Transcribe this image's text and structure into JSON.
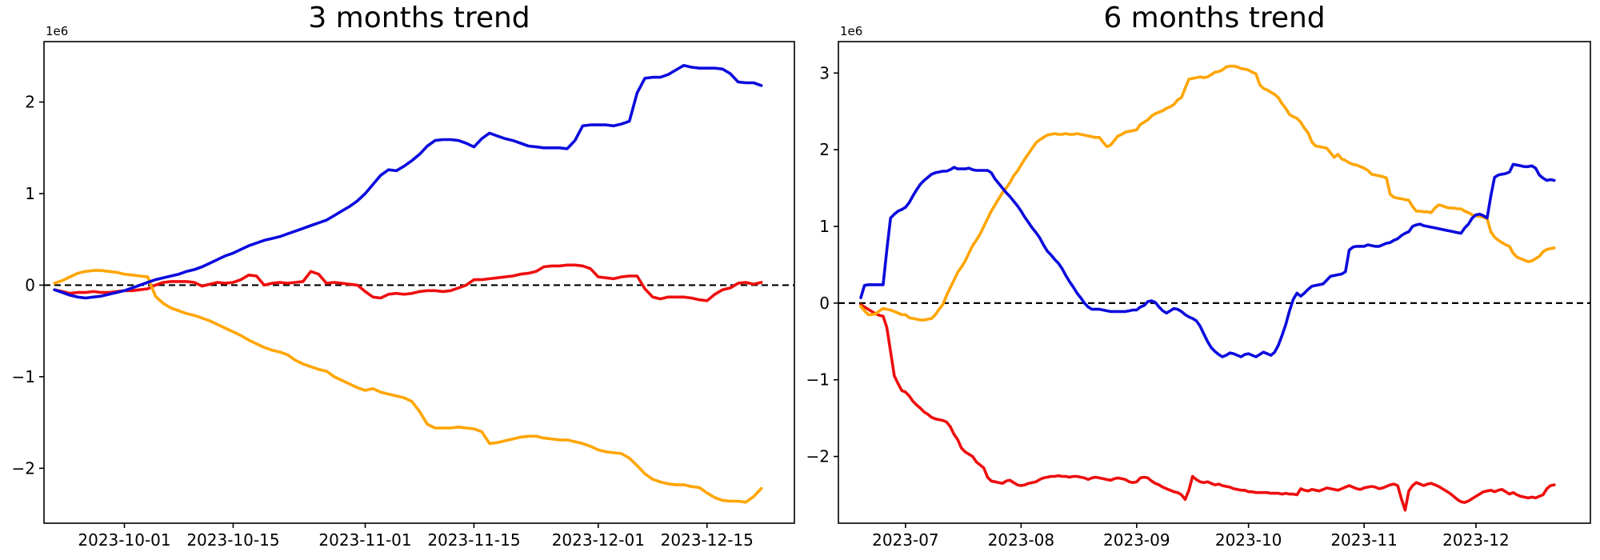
{
  "page": {
    "background": "#ffffff"
  },
  "chart_data": [
    {
      "type": "line",
      "title": "3 months trend",
      "axis_offset_label": "1e6",
      "start_date": "2023-09-22",
      "end_date": "2023-12-22",
      "grid": false,
      "legend_position": "none",
      "xlim_days": [
        -1.35,
        95.25
      ],
      "ylim": [
        -2.6,
        2.66
      ],
      "y_unit": 1000000,
      "zero_line": {
        "value": 0,
        "style": "dashed",
        "color": "#000000"
      },
      "y_ticks": [
        {
          "value": -2,
          "label": "−2"
        },
        {
          "value": -1,
          "label": "−1"
        },
        {
          "value": 0,
          "label": "0"
        },
        {
          "value": 1,
          "label": "1"
        },
        {
          "value": 2,
          "label": "2"
        }
      ],
      "x_ticks": [
        {
          "day": 9,
          "label": "2023-10-01"
        },
        {
          "day": 23,
          "label": "2023-10-15"
        },
        {
          "day": 40,
          "label": "2023-11-01"
        },
        {
          "day": 54,
          "label": "2023-11-15"
        },
        {
          "day": 70,
          "label": "2023-12-01"
        },
        {
          "day": 84,
          "label": "2023-12-15"
        }
      ],
      "series": [
        {
          "name": "series-red",
          "color": "#ee0e0e",
          "line_width": 3.6,
          "values": [
            -0.05,
            -0.07,
            -0.09,
            -0.08,
            -0.08,
            -0.07,
            -0.08,
            -0.08,
            -0.07,
            -0.06,
            -0.06,
            -0.05,
            -0.04,
            0.0,
            0.03,
            0.04,
            0.04,
            0.04,
            0.03,
            -0.01,
            0.01,
            0.03,
            0.02,
            0.03,
            0.06,
            0.11,
            0.1,
            0.0,
            0.02,
            0.03,
            0.02,
            0.03,
            0.04,
            0.15,
            0.12,
            0.02,
            0.03,
            0.02,
            0.01,
            0.0,
            -0.07,
            -0.13,
            -0.14,
            -0.1,
            -0.09,
            -0.1,
            -0.09,
            -0.07,
            -0.06,
            -0.06,
            -0.07,
            -0.06,
            -0.03,
            0.0,
            0.06,
            0.06,
            0.07,
            0.08,
            0.09,
            0.1,
            0.12,
            0.13,
            0.15,
            0.2,
            0.21,
            0.21,
            0.22,
            0.22,
            0.21,
            0.18,
            0.09,
            0.08,
            0.07,
            0.09,
            0.1,
            0.1,
            -0.04,
            -0.13,
            -0.15,
            -0.13,
            -0.13,
            -0.13,
            -0.14,
            -0.16,
            -0.17,
            -0.1,
            -0.05,
            -0.03,
            0.02,
            0.03,
            0.01,
            0.03
          ]
        },
        {
          "name": "series-orange",
          "color": "#ffa500",
          "line_width": 3.6,
          "values": [
            0.02,
            0.05,
            0.09,
            0.13,
            0.15,
            0.16,
            0.16,
            0.15,
            0.14,
            0.12,
            0.11,
            0.1,
            0.09,
            -0.12,
            -0.2,
            -0.25,
            -0.28,
            -0.31,
            -0.33,
            -0.36,
            -0.39,
            -0.43,
            -0.47,
            -0.51,
            -0.55,
            -0.6,
            -0.64,
            -0.68,
            -0.71,
            -0.73,
            -0.76,
            -0.82,
            -0.86,
            -0.89,
            -0.92,
            -0.94,
            -1.0,
            -1.04,
            -1.08,
            -1.12,
            -1.15,
            -1.13,
            -1.17,
            -1.19,
            -1.21,
            -1.23,
            -1.27,
            -1.38,
            -1.52,
            -1.56,
            -1.56,
            -1.56,
            -1.55,
            -1.56,
            -1.57,
            -1.6,
            -1.73,
            -1.72,
            -1.7,
            -1.68,
            -1.66,
            -1.65,
            -1.65,
            -1.67,
            -1.68,
            -1.69,
            -1.69,
            -1.71,
            -1.73,
            -1.76,
            -1.8,
            -1.82,
            -1.83,
            -1.84,
            -1.89,
            -1.97,
            -2.06,
            -2.12,
            -2.15,
            -2.17,
            -2.18,
            -2.18,
            -2.2,
            -2.21,
            -2.27,
            -2.32,
            -2.35,
            -2.36,
            -2.36,
            -2.37,
            -2.31,
            -2.22
          ]
        },
        {
          "name": "series-blue",
          "color": "#0b0bdd",
          "line_width": 3.6,
          "values": [
            -0.05,
            -0.08,
            -0.11,
            -0.13,
            -0.14,
            -0.13,
            -0.12,
            -0.1,
            -0.08,
            -0.06,
            -0.03,
            0.0,
            0.03,
            0.06,
            0.08,
            0.1,
            0.12,
            0.15,
            0.17,
            0.2,
            0.24,
            0.28,
            0.32,
            0.35,
            0.39,
            0.43,
            0.46,
            0.49,
            0.51,
            0.53,
            0.56,
            0.59,
            0.62,
            0.65,
            0.68,
            0.71,
            0.76,
            0.81,
            0.86,
            0.92,
            1.0,
            1.1,
            1.2,
            1.26,
            1.25,
            1.3,
            1.36,
            1.43,
            1.52,
            1.58,
            1.59,
            1.59,
            1.58,
            1.55,
            1.51,
            1.6,
            1.66,
            1.63,
            1.6,
            1.58,
            1.55,
            1.52,
            1.51,
            1.5,
            1.5,
            1.5,
            1.49,
            1.58,
            1.74,
            1.75,
            1.75,
            1.75,
            1.74,
            1.76,
            1.79,
            2.1,
            2.26,
            2.27,
            2.27,
            2.3,
            2.35,
            2.4,
            2.38,
            2.37,
            2.37,
            2.37,
            2.36,
            2.31,
            2.22,
            2.21,
            2.21,
            2.18
          ]
        }
      ]
    },
    {
      "type": "line",
      "title": "6 months trend",
      "axis_offset_label": "1e6",
      "start_date": "2023-06-19",
      "end_date": "2023-12-22",
      "grid": false,
      "legend_position": "none",
      "xlim_days": [
        -6.0,
        195.7
      ],
      "ylim": [
        -2.87,
        3.41
      ],
      "y_unit": 1000000,
      "zero_line": {
        "value": 0,
        "style": "dashed",
        "color": "#000000"
      },
      "y_ticks": [
        {
          "value": -2,
          "label": "−2"
        },
        {
          "value": -1,
          "label": "−1"
        },
        {
          "value": 0,
          "label": "0"
        },
        {
          "value": 1,
          "label": "1"
        },
        {
          "value": 2,
          "label": "2"
        },
        {
          "value": 3,
          "label": "3"
        }
      ],
      "x_ticks": [
        {
          "day": 12,
          "label": "2023-07"
        },
        {
          "day": 43,
          "label": "2023-08"
        },
        {
          "day": 74,
          "label": "2023-09"
        },
        {
          "day": 104,
          "label": "2023-10"
        },
        {
          "day": 135,
          "label": "2023-11"
        },
        {
          "day": 165,
          "label": "2023-12"
        }
      ],
      "series": [
        {
          "name": "series-red",
          "color": "#ee0e0e",
          "line_width": 3.6,
          "values": [
            -0.02,
            -0.05,
            -0.08,
            -0.11,
            -0.14,
            -0.16,
            -0.17,
            -0.32,
            -0.63,
            -0.95,
            -1.05,
            -1.14,
            -1.16,
            -1.21,
            -1.28,
            -1.33,
            -1.37,
            -1.42,
            -1.45,
            -1.49,
            -1.51,
            -1.52,
            -1.53,
            -1.55,
            -1.61,
            -1.71,
            -1.78,
            -1.89,
            -1.94,
            -1.97,
            -2.0,
            -2.07,
            -2.11,
            -2.15,
            -2.27,
            -2.32,
            -2.33,
            -2.34,
            -2.35,
            -2.32,
            -2.31,
            -2.34,
            -2.37,
            -2.38,
            -2.37,
            -2.35,
            -2.34,
            -2.33,
            -2.3,
            -2.28,
            -2.27,
            -2.26,
            -2.26,
            -2.25,
            -2.26,
            -2.26,
            -2.27,
            -2.26,
            -2.26,
            -2.27,
            -2.28,
            -2.3,
            -2.28,
            -2.27,
            -2.28,
            -2.29,
            -2.3,
            -2.31,
            -2.29,
            -2.28,
            -2.29,
            -2.3,
            -2.33,
            -2.34,
            -2.33,
            -2.28,
            -2.27,
            -2.28,
            -2.32,
            -2.35,
            -2.37,
            -2.4,
            -2.42,
            -2.44,
            -2.46,
            -2.47,
            -2.5,
            -2.56,
            -2.44,
            -2.26,
            -2.3,
            -2.33,
            -2.34,
            -2.33,
            -2.35,
            -2.37,
            -2.36,
            -2.38,
            -2.39,
            -2.4,
            -2.42,
            -2.43,
            -2.44,
            -2.44,
            -2.46,
            -2.46,
            -2.47,
            -2.47,
            -2.47,
            -2.47,
            -2.48,
            -2.48,
            -2.48,
            -2.49,
            -2.48,
            -2.49,
            -2.49,
            -2.5,
            -2.42,
            -2.44,
            -2.45,
            -2.43,
            -2.44,
            -2.45,
            -2.43,
            -2.41,
            -2.42,
            -2.43,
            -2.44,
            -2.42,
            -2.4,
            -2.38,
            -2.4,
            -2.42,
            -2.43,
            -2.41,
            -2.4,
            -2.39,
            -2.4,
            -2.42,
            -2.41,
            -2.39,
            -2.37,
            -2.36,
            -2.38,
            -2.55,
            -2.7,
            -2.45,
            -2.38,
            -2.34,
            -2.36,
            -2.38,
            -2.36,
            -2.35,
            -2.37,
            -2.39,
            -2.42,
            -2.45,
            -2.48,
            -2.52,
            -2.56,
            -2.59,
            -2.6,
            -2.58,
            -2.55,
            -2.52,
            -2.49,
            -2.46,
            -2.45,
            -2.44,
            -2.46,
            -2.44,
            -2.43,
            -2.46,
            -2.49,
            -2.47,
            -2.5,
            -2.52,
            -2.53,
            -2.54,
            -2.53,
            -2.54,
            -2.52,
            -2.5,
            -2.42,
            -2.38,
            -2.37
          ]
        },
        {
          "name": "series-orange",
          "color": "#ffa500",
          "line_width": 3.6,
          "values": [
            -0.04,
            -0.1,
            -0.15,
            -0.15,
            -0.14,
            -0.1,
            -0.07,
            -0.08,
            -0.09,
            -0.11,
            -0.13,
            -0.15,
            -0.15,
            -0.19,
            -0.2,
            -0.21,
            -0.22,
            -0.22,
            -0.21,
            -0.2,
            -0.15,
            -0.08,
            -0.02,
            0.1,
            0.2,
            0.3,
            0.4,
            0.47,
            0.55,
            0.65,
            0.75,
            0.82,
            0.9,
            1.0,
            1.1,
            1.2,
            1.28,
            1.36,
            1.44,
            1.5,
            1.57,
            1.66,
            1.72,
            1.8,
            1.88,
            1.95,
            2.02,
            2.09,
            2.13,
            2.16,
            2.19,
            2.2,
            2.21,
            2.2,
            2.2,
            2.21,
            2.2,
            2.2,
            2.21,
            2.2,
            2.19,
            2.18,
            2.17,
            2.16,
            2.16,
            2.1,
            2.04,
            2.06,
            2.12,
            2.18,
            2.2,
            2.23,
            2.24,
            2.25,
            2.26,
            2.33,
            2.36,
            2.39,
            2.44,
            2.47,
            2.49,
            2.51,
            2.54,
            2.56,
            2.59,
            2.65,
            2.68,
            2.8,
            2.92,
            2.93,
            2.94,
            2.95,
            2.94,
            2.95,
            2.98,
            3.01,
            3.02,
            3.04,
            3.08,
            3.09,
            3.09,
            3.08,
            3.06,
            3.05,
            3.04,
            3.01,
            2.99,
            2.85,
            2.8,
            2.78,
            2.75,
            2.72,
            2.68,
            2.6,
            2.54,
            2.46,
            2.43,
            2.41,
            2.36,
            2.28,
            2.22,
            2.1,
            2.05,
            2.04,
            2.03,
            2.02,
            1.96,
            1.9,
            1.94,
            1.88,
            1.86,
            1.83,
            1.81,
            1.8,
            1.78,
            1.76,
            1.73,
            1.68,
            1.67,
            1.66,
            1.65,
            1.63,
            1.42,
            1.38,
            1.37,
            1.36,
            1.35,
            1.34,
            1.26,
            1.2,
            1.2,
            1.19,
            1.19,
            1.18,
            1.24,
            1.28,
            1.27,
            1.25,
            1.24,
            1.24,
            1.23,
            1.23,
            1.2,
            1.18,
            1.15,
            1.14,
            1.13,
            1.12,
            1.1,
            0.93,
            0.86,
            0.82,
            0.79,
            0.76,
            0.74,
            0.65,
            0.6,
            0.58,
            0.56,
            0.54,
            0.55,
            0.58,
            0.61,
            0.67,
            0.7,
            0.71,
            0.72
          ]
        },
        {
          "name": "series-blue",
          "color": "#0b0bdd",
          "line_width": 3.6,
          "values": [
            0.07,
            0.23,
            0.24,
            0.24,
            0.24,
            0.24,
            0.24,
            0.7,
            1.11,
            1.16,
            1.2,
            1.22,
            1.25,
            1.31,
            1.4,
            1.48,
            1.55,
            1.6,
            1.64,
            1.68,
            1.7,
            1.71,
            1.72,
            1.72,
            1.74,
            1.77,
            1.75,
            1.75,
            1.75,
            1.76,
            1.74,
            1.73,
            1.73,
            1.73,
            1.73,
            1.7,
            1.62,
            1.56,
            1.5,
            1.44,
            1.39,
            1.33,
            1.27,
            1.2,
            1.12,
            1.05,
            0.98,
            0.92,
            0.85,
            0.76,
            0.68,
            0.63,
            0.57,
            0.52,
            0.45,
            0.36,
            0.28,
            0.21,
            0.13,
            0.07,
            0.0,
            -0.05,
            -0.08,
            -0.08,
            -0.08,
            -0.09,
            -0.1,
            -0.11,
            -0.11,
            -0.11,
            -0.11,
            -0.11,
            -0.1,
            -0.09,
            -0.09,
            -0.05,
            -0.03,
            0.02,
            0.03,
            0.01,
            -0.05,
            -0.1,
            -0.13,
            -0.1,
            -0.07,
            -0.08,
            -0.11,
            -0.15,
            -0.18,
            -0.2,
            -0.23,
            -0.3,
            -0.4,
            -0.5,
            -0.58,
            -0.63,
            -0.67,
            -0.7,
            -0.68,
            -0.65,
            -0.66,
            -0.68,
            -0.7,
            -0.67,
            -0.66,
            -0.68,
            -0.7,
            -0.67,
            -0.64,
            -0.66,
            -0.68,
            -0.64,
            -0.55,
            -0.42,
            -0.28,
            -0.1,
            0.05,
            0.13,
            0.09,
            0.13,
            0.18,
            0.22,
            0.23,
            0.24,
            0.25,
            0.3,
            0.35,
            0.36,
            0.37,
            0.38,
            0.41,
            0.69,
            0.73,
            0.74,
            0.74,
            0.74,
            0.76,
            0.75,
            0.74,
            0.74,
            0.76,
            0.78,
            0.79,
            0.82,
            0.84,
            0.88,
            0.91,
            0.93,
            1.0,
            1.02,
            1.03,
            1.01,
            1.0,
            0.99,
            0.98,
            0.97,
            0.96,
            0.95,
            0.94,
            0.93,
            0.92,
            0.91,
            0.98,
            1.03,
            1.11,
            1.15,
            1.16,
            1.14,
            1.11,
            1.4,
            1.64,
            1.67,
            1.68,
            1.69,
            1.71,
            1.81,
            1.8,
            1.79,
            1.78,
            1.78,
            1.79,
            1.76,
            1.67,
            1.63,
            1.6,
            1.61,
            1.6
          ]
        }
      ]
    }
  ]
}
